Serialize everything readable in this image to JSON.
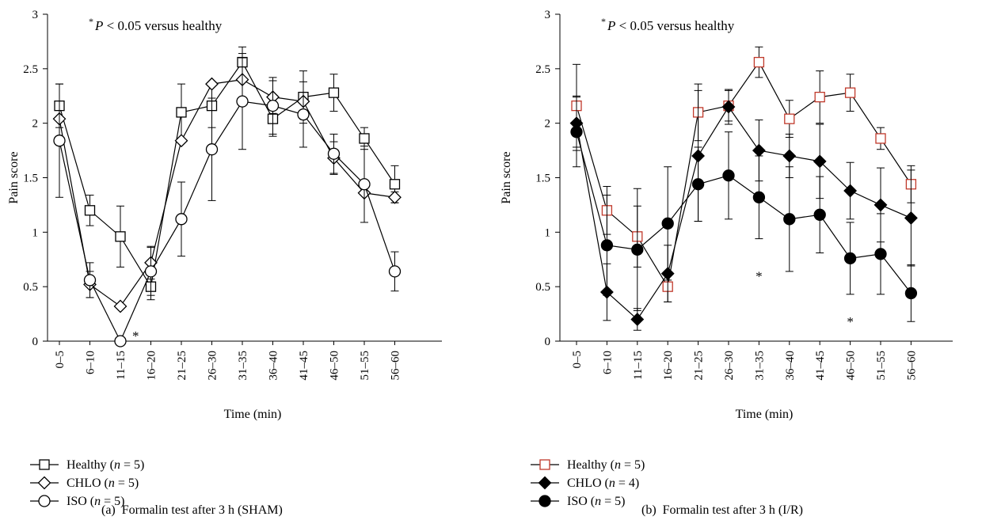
{
  "chart_data": [
    {
      "type": "line",
      "panel_label": "(a)",
      "caption": "Formalin test after 3 h (SHAM)",
      "xlabel": "Time (min)",
      "ylabel": "Pain score",
      "ylim": [
        0,
        3
      ],
      "yticks": [
        "0",
        "0.5",
        "1",
        "1.5",
        "2",
        "2.5",
        "3"
      ],
      "categories": [
        "0–5",
        "6–10",
        "11–15",
        "16–20",
        "21–25",
        "26–30",
        "31–35",
        "36–40",
        "41–45",
        "46–50",
        "51–55",
        "56–60"
      ],
      "annotation": {
        "prefix": "*",
        "p": "P",
        "rest": " < 0.05 versus healthy"
      },
      "significance_marks": [
        {
          "category_index": 2.5,
          "y": 0.05,
          "label": "*"
        }
      ],
      "series": [
        {
          "name": "Healthy",
          "n_label": "n",
          "n_value": " = 5",
          "marker": "square",
          "fill": "#ffffff",
          "stroke": "#000000",
          "values": [
            2.16,
            1.2,
            0.96,
            0.5,
            2.1,
            2.16,
            2.56,
            2.04,
            2.24,
            2.28,
            1.86,
            1.44
          ],
          "errors": [
            0.2,
            0.14,
            0.28,
            0.12,
            0.26,
            0.2,
            0.14,
            0.16,
            0.24,
            0.17,
            0.1,
            0.17
          ]
        },
        {
          "name": "CHLO",
          "n_label": "n",
          "n_value": " = 5",
          "marker": "diamond",
          "fill": "#ffffff",
          "stroke": "#000000",
          "values": [
            2.04,
            0.52,
            0.32,
            0.72,
            1.84,
            2.36,
            2.4,
            2.24,
            2.2,
            1.68,
            1.36,
            1.32
          ],
          "errors": [
            0.0,
            0.12,
            0.0,
            0.15,
            0.0,
            0.0,
            0.2,
            0.15,
            0.0,
            0.15,
            0.0,
            0.05
          ]
        },
        {
          "name": "ISO",
          "n_label": "n",
          "n_value": " = 5",
          "marker": "circle",
          "fill": "#ffffff",
          "stroke": "#000000",
          "values": [
            1.84,
            0.56,
            0.0,
            0.64,
            1.12,
            1.76,
            2.2,
            2.16,
            2.08,
            1.72,
            1.44,
            0.64
          ],
          "errors": [
            0.52,
            0.16,
            0.0,
            0.22,
            0.34,
            0.47,
            0.44,
            0.26,
            0.3,
            0.18,
            0.35,
            0.18
          ]
        }
      ]
    },
    {
      "type": "line",
      "panel_label": "(b)",
      "caption": "Formalin test after 3 h (I/R)",
      "xlabel": "Time (min)",
      "ylabel": "Pain score",
      "ylim": [
        0,
        3
      ],
      "yticks": [
        "0",
        "0.5",
        "1",
        "1.5",
        "2",
        "2.5",
        "3"
      ],
      "categories": [
        "0–5",
        "6–10",
        "11–15",
        "16–20",
        "21–25",
        "26–30",
        "31–35",
        "36–40",
        "41–45",
        "46–50",
        "51–55",
        "56–60"
      ],
      "annotation": {
        "prefix": "*",
        "p": "P",
        "rest": " < 0.05 versus healthy"
      },
      "significance_marks": [
        {
          "category_index": 6,
          "y": 0.6,
          "label": "*"
        },
        {
          "category_index": 9,
          "y": 0.18,
          "label": "*"
        }
      ],
      "series": [
        {
          "name": "Healthy",
          "n_label": "n",
          "n_value": " = 5",
          "marker": "square",
          "fill": "#ffffff",
          "stroke": "#c0392b",
          "values": [
            2.16,
            1.2,
            0.96,
            0.5,
            2.1,
            2.16,
            2.56,
            2.04,
            2.24,
            2.28,
            1.86,
            1.44
          ],
          "errors": [
            0.38,
            0.22,
            0.28,
            0.14,
            0.26,
            0.14,
            0.14,
            0.17,
            0.24,
            0.17,
            0.1,
            0.17
          ]
        },
        {
          "name": "CHLO",
          "n_label": "n",
          "n_value": " = 4",
          "marker": "diamond",
          "fill": "#000000",
          "stroke": "#000000",
          "values": [
            2.0,
            0.45,
            0.2,
            0.62,
            1.7,
            2.15,
            1.75,
            1.7,
            1.65,
            1.38,
            1.25,
            1.13
          ],
          "errors": [
            0.25,
            0.26,
            0.1,
            0.26,
            0.6,
            0.16,
            0.28,
            0.2,
            0.34,
            0.26,
            0.34,
            0.44
          ]
        },
        {
          "name": "ISO",
          "n_label": "n",
          "n_value": " = 5",
          "marker": "circle",
          "fill": "#000000",
          "stroke": "#000000",
          "values": [
            1.92,
            0.88,
            0.84,
            1.08,
            1.44,
            1.52,
            1.32,
            1.12,
            1.16,
            0.76,
            0.8,
            0.44
          ],
          "errors": [
            0.32,
            0.46,
            0.56,
            0.52,
            0.34,
            0.4,
            0.38,
            0.48,
            0.35,
            0.33,
            0.37,
            0.26
          ]
        }
      ]
    }
  ]
}
